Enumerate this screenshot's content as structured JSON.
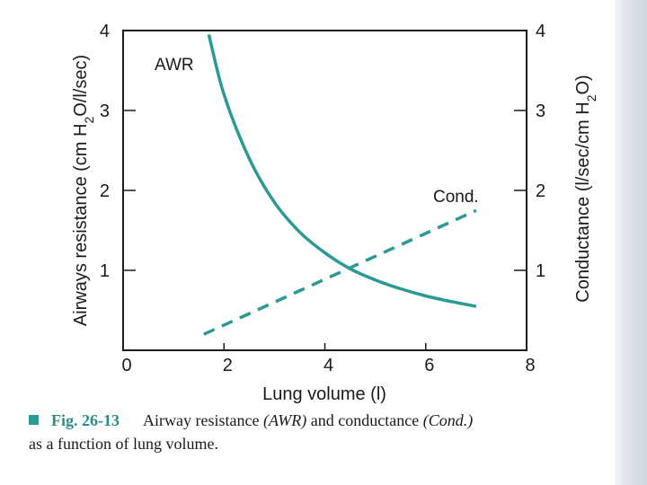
{
  "chart_data": {
    "type": "line",
    "x": [
      1.7,
      2.0,
      2.5,
      3.0,
      3.5,
      4.0,
      4.5,
      5.0,
      5.5,
      6.0,
      6.5,
      7.0
    ],
    "series": [
      {
        "name": "AWR",
        "label": "AWR",
        "axis": "left",
        "style": "solid",
        "color": "#2a9a93",
        "x": [
          1.7,
          2.0,
          2.5,
          3.0,
          3.5,
          4.0,
          4.5,
          5.0,
          5.5,
          6.0,
          6.5,
          7.0
        ],
        "values": [
          3.95,
          3.2,
          2.4,
          1.85,
          1.48,
          1.22,
          1.02,
          0.88,
          0.77,
          0.68,
          0.61,
          0.55
        ]
      },
      {
        "name": "Cond.",
        "label": "Cond.",
        "axis": "right",
        "style": "dashed",
        "color": "#2a9a93",
        "x": [
          1.6,
          7.0
        ],
        "values": [
          0.2,
          1.75
        ]
      }
    ],
    "xlabel": "Lung volume (l)",
    "ylabel_left": "Airways resistance (cm H2O/l/sec)",
    "ylabel_right": "Conductance (l/sec/cm H2O)",
    "xlim": [
      0,
      8
    ],
    "ylim": [
      0,
      4
    ],
    "x_ticks": [
      "0",
      "2",
      "4",
      "6",
      "8"
    ],
    "y_ticks": [
      "1",
      "2",
      "3",
      "4"
    ],
    "grid": false
  },
  "caption": {
    "figure_number": "Fig. 26-13",
    "text_part1": "Airway resistance ",
    "awr_term": "(AWR)",
    "text_part2": " and conductance ",
    "cond_term": "(Cond.)",
    "text_line2": "as a function of lung volume."
  },
  "colors": {
    "curve": "#2a9a93",
    "caption_accent": "#2a8e88"
  }
}
